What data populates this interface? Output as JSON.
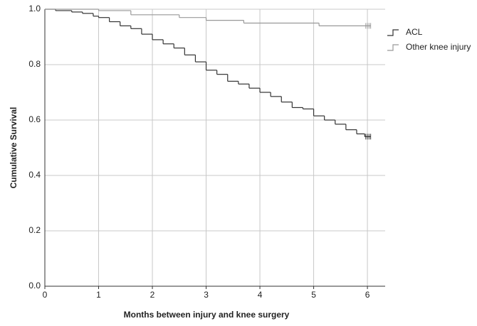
{
  "chart_data": {
    "type": "step",
    "xlabel": "Months between injury and knee surgery",
    "ylabel": "Cumulative Survival",
    "xlim": [
      0,
      6.33
    ],
    "ylim": [
      0,
      1
    ],
    "xticks": [
      0,
      1,
      2,
      3,
      4,
      5,
      6
    ],
    "yticks": [
      {
        "value": 0,
        "label": "0.0"
      },
      {
        "value": 0.2,
        "label": "0.2"
      },
      {
        "value": 0.4,
        "label": "0.4"
      },
      {
        "value": 0.6,
        "label": "0.6"
      },
      {
        "value": 0.8,
        "label": "0.8"
      },
      {
        "value": 1,
        "label": "1.0"
      }
    ],
    "grid": true,
    "legend": "right",
    "series": [
      {
        "name": "ACL",
        "color": "#333333",
        "x": [
          0,
          0.2,
          0.5,
          0.7,
          0.9,
          1.0,
          1.2,
          1.4,
          1.6,
          1.8,
          2.0,
          2.2,
          2.4,
          2.6,
          2.8,
          3.0,
          3.2,
          3.4,
          3.6,
          3.8,
          4.0,
          4.2,
          4.4,
          4.6,
          4.8,
          5.0,
          5.2,
          5.4,
          5.6,
          5.8,
          5.95
        ],
        "values": [
          1,
          0.995,
          0.99,
          0.985,
          0.975,
          0.97,
          0.955,
          0.94,
          0.93,
          0.91,
          0.89,
          0.875,
          0.86,
          0.835,
          0.81,
          0.78,
          0.765,
          0.74,
          0.73,
          0.715,
          0.7,
          0.685,
          0.665,
          0.645,
          0.64,
          0.615,
          0.6,
          0.585,
          0.565,
          0.55,
          0.54
        ],
        "censored_x": [
          5.97,
          6.0,
          6.03,
          6.06
        ]
      },
      {
        "name": "Other knee injury",
        "color": "#999999",
        "x": [
          0,
          1.0,
          1.6,
          2.5,
          3.0,
          3.7,
          5.1
        ],
        "values": [
          1,
          0.995,
          0.98,
          0.97,
          0.96,
          0.95,
          0.94
        ],
        "censored_x": [
          5.97,
          6.0,
          6.03,
          6.06
        ]
      }
    ]
  }
}
